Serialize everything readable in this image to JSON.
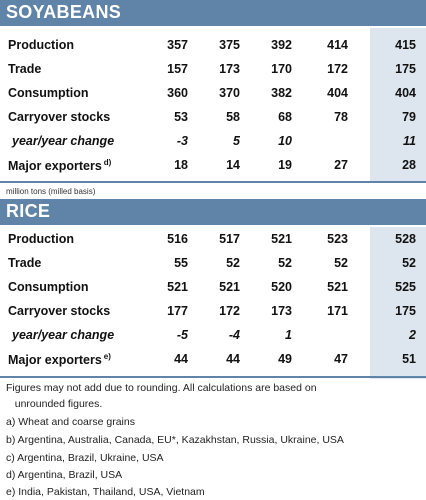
{
  "soybeans": {
    "title": "SOYABEANS",
    "rows": [
      {
        "label": "Production",
        "values": [
          "357",
          "375",
          "392",
          "414",
          "415"
        ]
      },
      {
        "label": "Trade",
        "values": [
          "157",
          "173",
          "170",
          "172",
          "175"
        ]
      },
      {
        "label": "Consumption",
        "values": [
          "360",
          "370",
          "382",
          "404",
          "404"
        ]
      },
      {
        "label": "Carryover stocks",
        "values": [
          "53",
          "58",
          "68",
          "78",
          "79"
        ]
      },
      {
        "label": "year/year change",
        "values": [
          "-3",
          "5",
          "10",
          "",
          "11"
        ]
      },
      {
        "label": "Major exporters",
        "sup": "d)",
        "values": [
          "18",
          "14",
          "19",
          "27",
          "28"
        ]
      }
    ],
    "unit_note": "million tons (milled basis)"
  },
  "rice": {
    "title": "RICE",
    "rows": [
      {
        "label": "Production",
        "values": [
          "516",
          "517",
          "521",
          "523",
          "528"
        ]
      },
      {
        "label": "Trade",
        "values": [
          "55",
          "52",
          "52",
          "52",
          "52"
        ]
      },
      {
        "label": "Consumption",
        "values": [
          "521",
          "521",
          "520",
          "521",
          "525"
        ]
      },
      {
        "label": "Carryover stocks",
        "values": [
          "177",
          "172",
          "173",
          "171",
          "175"
        ]
      },
      {
        "label": "year/year change",
        "values": [
          "-5",
          "-4",
          "1",
          "",
          "2"
        ]
      },
      {
        "label": "Major exporters",
        "sup": "e)",
        "values": [
          "44",
          "44",
          "49",
          "47",
          "51"
        ]
      }
    ]
  },
  "footnotes": [
    "Figures may not add due to rounding. All calculations are based on",
    "   unrounded figures.",
    "a) Wheat and coarse grains",
    "b) Argentina, Australia, Canada, EU*, Kazakhstan, Russia, Ukraine, USA",
    "c) Argentina, Brazil, Ukraine, USA",
    "d) Argentina, Brazil, USA",
    "e) India, Pakistan, Thailand, USA, Vietnam"
  ],
  "colors": {
    "header_bg": "#5f84a8",
    "highlight_col": "#dde5ee"
  }
}
